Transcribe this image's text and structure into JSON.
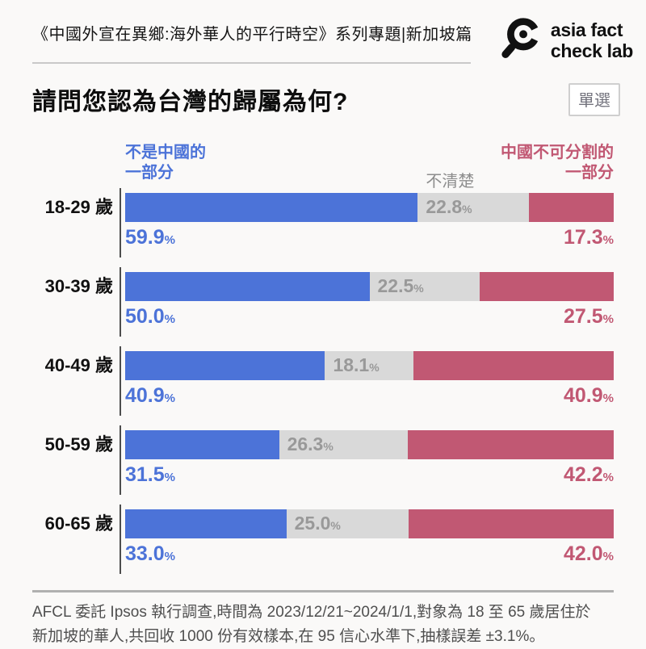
{
  "page": {
    "background": "#FAF9F8",
    "header": {
      "series_title": "《中國外宣在異鄉:海外華人的平行時空》系列專題|新加坡篇",
      "logo": {
        "icon": "magnifier-logo-icon",
        "line1": "asia fact",
        "line2": "check lab"
      }
    },
    "question": {
      "title": "請問您認為台灣的歸屬為何?",
      "badge": "單選"
    },
    "footer": {
      "lines": [
        "AFCL 委託 Ipsos 執行調查,時間為 2023/12/21~2024/1/1,對象為 18 至 65 歲居住於",
        "新加坡的華人,共回收 1000 份有效樣本,在 95 信心水準下,抽樣誤差 ±3.1%。"
      ]
    }
  },
  "chart_data": {
    "type": "bar",
    "orientation": "horizontal-stacked",
    "title": "請問您認為台灣的歸屬為何?",
    "categories": [
      "18-29 歲",
      "30-39 歲",
      "40-49 歲",
      "50-59 歲",
      "60-65 歲"
    ],
    "series": [
      {
        "name": "不是中國的一部分",
        "color": "#4C73D8",
        "values": [
          59.9,
          50.0,
          40.9,
          31.5,
          33.0
        ]
      },
      {
        "name": "不清楚",
        "color": "#D9D9D9",
        "label_color": "#999999",
        "values": [
          22.8,
          22.5,
          18.1,
          26.3,
          25.0
        ]
      },
      {
        "name": "中國不可分割的一部分",
        "color": "#C15873",
        "values": [
          17.3,
          27.5,
          40.9,
          42.2,
          42.0
        ]
      }
    ],
    "value_suffix": "%",
    "xlim": [
      0,
      100
    ],
    "legend": {
      "position": "top",
      "left": [
        "不是中國的",
        "一部分"
      ],
      "middle": "不清楚",
      "right": [
        "中國不可分割的",
        "一部分"
      ]
    }
  }
}
